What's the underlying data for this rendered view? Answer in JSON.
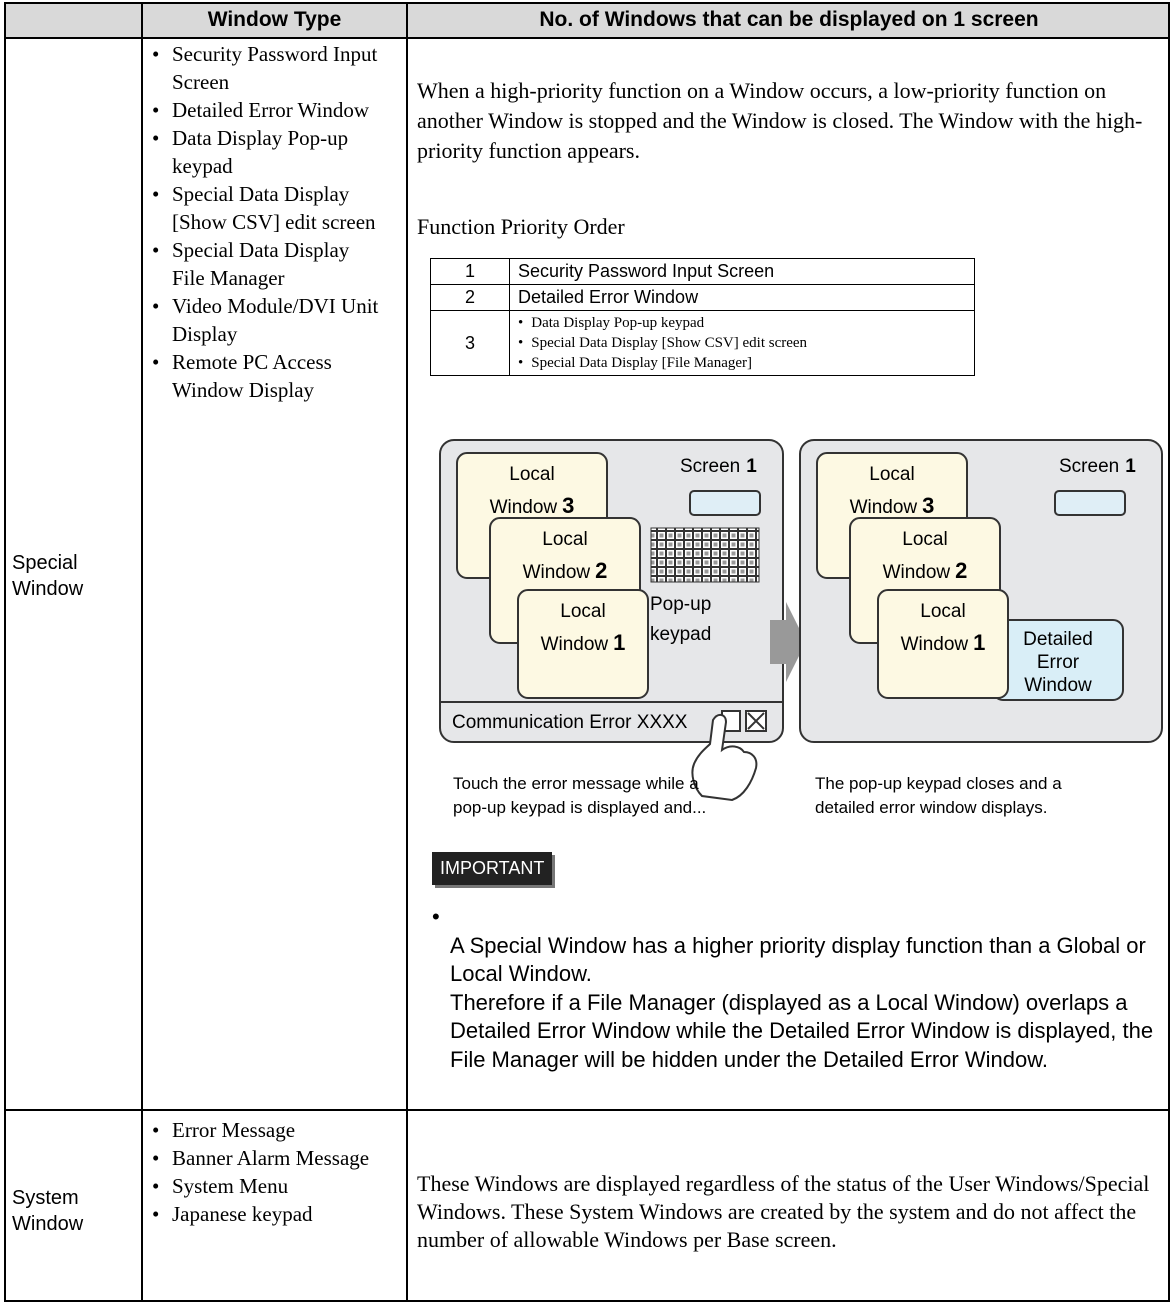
{
  "table": {
    "header": [
      "Window Type",
      "No. of Windows that can be displayed on 1 screen"
    ],
    "rows": [
      {
        "window": "Special Window",
        "types": [
          "Security Password Input Screen",
          "Detailed Error Window",
          "Data Display Pop-up keypad",
          "Special Data Display [Show CSV] edit screen",
          "Special Data Display File Manager",
          "Video Module/DVI Unit Display",
          "Remote PC Access Window Display"
        ],
        "description": "When a high-priority function on a Window occurs, a low-priority function on another Window is stopped and the Window is closed. The Window with the high-priority function appears.",
        "priority_title": "Function Priority Order",
        "priority": [
          {
            "rank": 1,
            "items": [
              "Security Password Input Screen"
            ]
          },
          {
            "rank": 2,
            "items": [
              "Detailed Error Window"
            ]
          },
          {
            "rank": 3,
            "items": [
              "Data Display Pop-up keypad",
              "Special Data Display [Show CSV] edit screen",
              "Special Data Display [File Manager]"
            ]
          }
        ],
        "diagram": {
          "left": {
            "screen_label": "Screen",
            "screen_number": 1,
            "windows": [
              {
                "line1": "Local",
                "line2": "Window",
                "number": 3
              },
              {
                "line1": "Local",
                "line2": "Window",
                "number": 2
              },
              {
                "line1": "Local",
                "line2": "Window",
                "number": 1
              }
            ],
            "keypad_label": [
              "Pop-up",
              "keypad"
            ],
            "error_message": "Communication Error XXXX"
          },
          "right": {
            "screen_label": "Screen",
            "screen_number": 1,
            "windows": [
              {
                "line1": "Local",
                "line2": "Window",
                "number": 3
              },
              {
                "line1": "Local",
                "line2": "Window",
                "number": 2
              },
              {
                "line1": "Local",
                "line2": "Window",
                "number": 1
              }
            ],
            "error_window": [
              "Detailed",
              "Error",
              "Window"
            ]
          }
        },
        "captions": [
          [
            "Touch the error message while a",
            "pop-up keypad is displayed and..."
          ],
          [
            "The pop-up keypad closes and a",
            "detailed error window displays."
          ]
        ],
        "important": {
          "label": "IMPORTANT",
          "text": [
            "A Special Window has a higher priority display function than a Global or Local Window.",
            "Therefore if a File Manager (displayed as a Local Window) overlaps a Detailed Error Window while the Detailed Error Window is displayed, the File Manager will be hidden under the Detailed Error Window."
          ]
        }
      },
      {
        "window": "System Window",
        "types": [
          "Error Message",
          "Banner Alarm Message",
          "System Menu",
          "Japanese keypad"
        ],
        "description": "These Windows are displayed regardless of the status of the User Windows/Special Windows. These System Windows are created by the system and do not affect the number of allowable Windows per Base screen."
      }
    ]
  }
}
